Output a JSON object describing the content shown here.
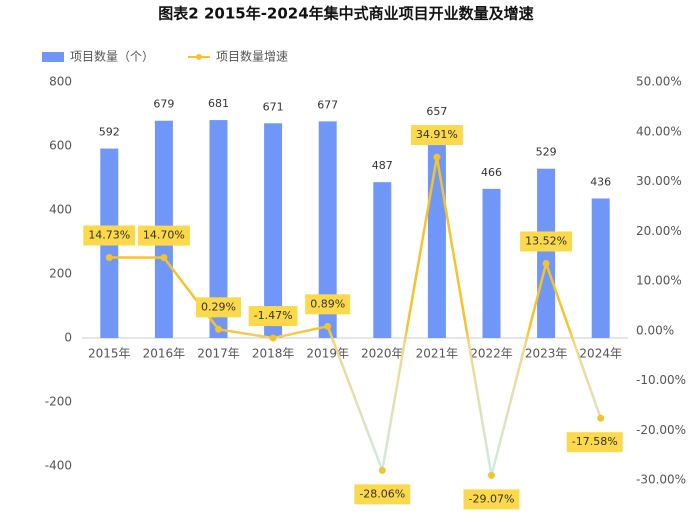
{
  "chart_data": {
    "type": "bar-line",
    "title": "图表2 2015年-2024年集中式商业项目开业数量及增速",
    "categories": [
      "2015年",
      "2016年",
      "2017年",
      "2018年",
      "2019年",
      "2020年",
      "2021年",
      "2022年",
      "2023年",
      "2024年"
    ],
    "series": [
      {
        "name": "项目数量（个）",
        "type": "bar",
        "color": "#7097f7",
        "values": [
          592,
          679,
          681,
          671,
          677,
          487,
          657,
          466,
          529,
          436
        ]
      },
      {
        "name": "项目数量增速",
        "type": "line",
        "axis": "y2",
        "color": "#f5c32c",
        "values": [
          14.73,
          14.7,
          0.29,
          -1.47,
          0.89,
          -28.06,
          34.91,
          -29.07,
          13.52,
          -17.58
        ],
        "value_labels": [
          "14.73%",
          "14.70%",
          "0.29%",
          "-1.47%",
          "0.89%",
          "-28.06%",
          "34.91%",
          "-29.07%",
          "13.52%",
          "-17.58%"
        ]
      }
    ],
    "ylim": [
      -400,
      800
    ],
    "yticks": [
      -400,
      -200,
      0,
      200,
      400,
      600,
      800
    ],
    "y2lim": [
      -30,
      50
    ],
    "y2ticks": [
      {
        "value": -30,
        "label": "-30.00%"
      },
      {
        "value": -20,
        "label": "-20.00%"
      },
      {
        "value": -10,
        "label": "-10.00%"
      },
      {
        "value": 0,
        "label": "0.00%"
      },
      {
        "value": 10,
        "label": "10.00%"
      },
      {
        "value": 20,
        "label": "20.00%"
      },
      {
        "value": 30,
        "label": "30.00%"
      },
      {
        "value": 40,
        "label": "40.00%"
      },
      {
        "value": 50,
        "label": "50.00%"
      }
    ],
    "grid": false,
    "legend": "top-left"
  }
}
